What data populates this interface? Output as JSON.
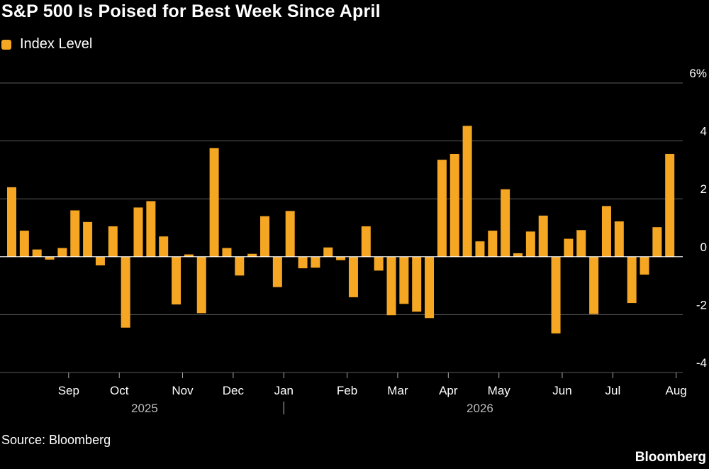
{
  "title": "S&P 500 Is Poised for Best Week Since April",
  "legend": {
    "label": "Index Level",
    "color": "#f5a623"
  },
  "source": "Source: Bloomberg",
  "brand": "Bloomberg",
  "chart_data": {
    "type": "bar",
    "title": "S&P 500 Is Poised for Best Week Since April",
    "xlabel": "",
    "ylabel": "",
    "ylim": [
      -4,
      6
    ],
    "y_ticks": [
      6,
      4,
      2,
      0,
      -2,
      -4
    ],
    "y_tick_labels": [
      "6%",
      "4",
      "2",
      "0",
      "-2",
      "-4"
    ],
    "grid": true,
    "legend_position": "top-left",
    "bar_color": "#f5a623",
    "x_month_labels": [
      {
        "label": "Sep",
        "index": 4.5
      },
      {
        "label": "Oct",
        "index": 8.5
      },
      {
        "label": "Nov",
        "index": 13.5
      },
      {
        "label": "Dec",
        "index": 17.5
      },
      {
        "label": "Jan",
        "index": 21.5
      },
      {
        "label": "Feb",
        "index": 26.5
      },
      {
        "label": "Mar",
        "index": 30.5
      },
      {
        "label": "Apr",
        "index": 34.5
      },
      {
        "label": "May",
        "index": 38.5
      },
      {
        "label": "Jun",
        "index": 43.5
      },
      {
        "label": "Jul",
        "index": 47.5
      },
      {
        "label": "Aug",
        "index": 52.5
      }
    ],
    "x_year_labels": [
      {
        "label": "2025",
        "index": 10.5
      },
      {
        "label": "2026",
        "index": 37
      }
    ],
    "year_divider_index": 21.5,
    "series": [
      {
        "values": [
          2.4,
          0.9,
          0.25,
          -0.1,
          0.3,
          1.6,
          1.2,
          -0.3,
          1.05,
          -2.45,
          1.7,
          1.92,
          0.7,
          -1.65,
          0.08,
          -1.95,
          3.75,
          0.3,
          -0.65,
          0.1,
          1.4,
          -1.05,
          1.58,
          -0.4,
          -0.38,
          0.32,
          -0.12,
          -1.4,
          1.05,
          -0.48,
          -2.02,
          -1.63,
          -1.9,
          -2.12,
          3.35,
          3.55,
          4.52,
          0.53,
          0.9,
          2.33,
          0.12,
          0.87,
          1.42,
          -2.65,
          0.62,
          0.92,
          -1.98,
          1.75,
          1.22,
          -1.6,
          -0.62,
          1.02,
          3.55
        ]
      }
    ]
  }
}
